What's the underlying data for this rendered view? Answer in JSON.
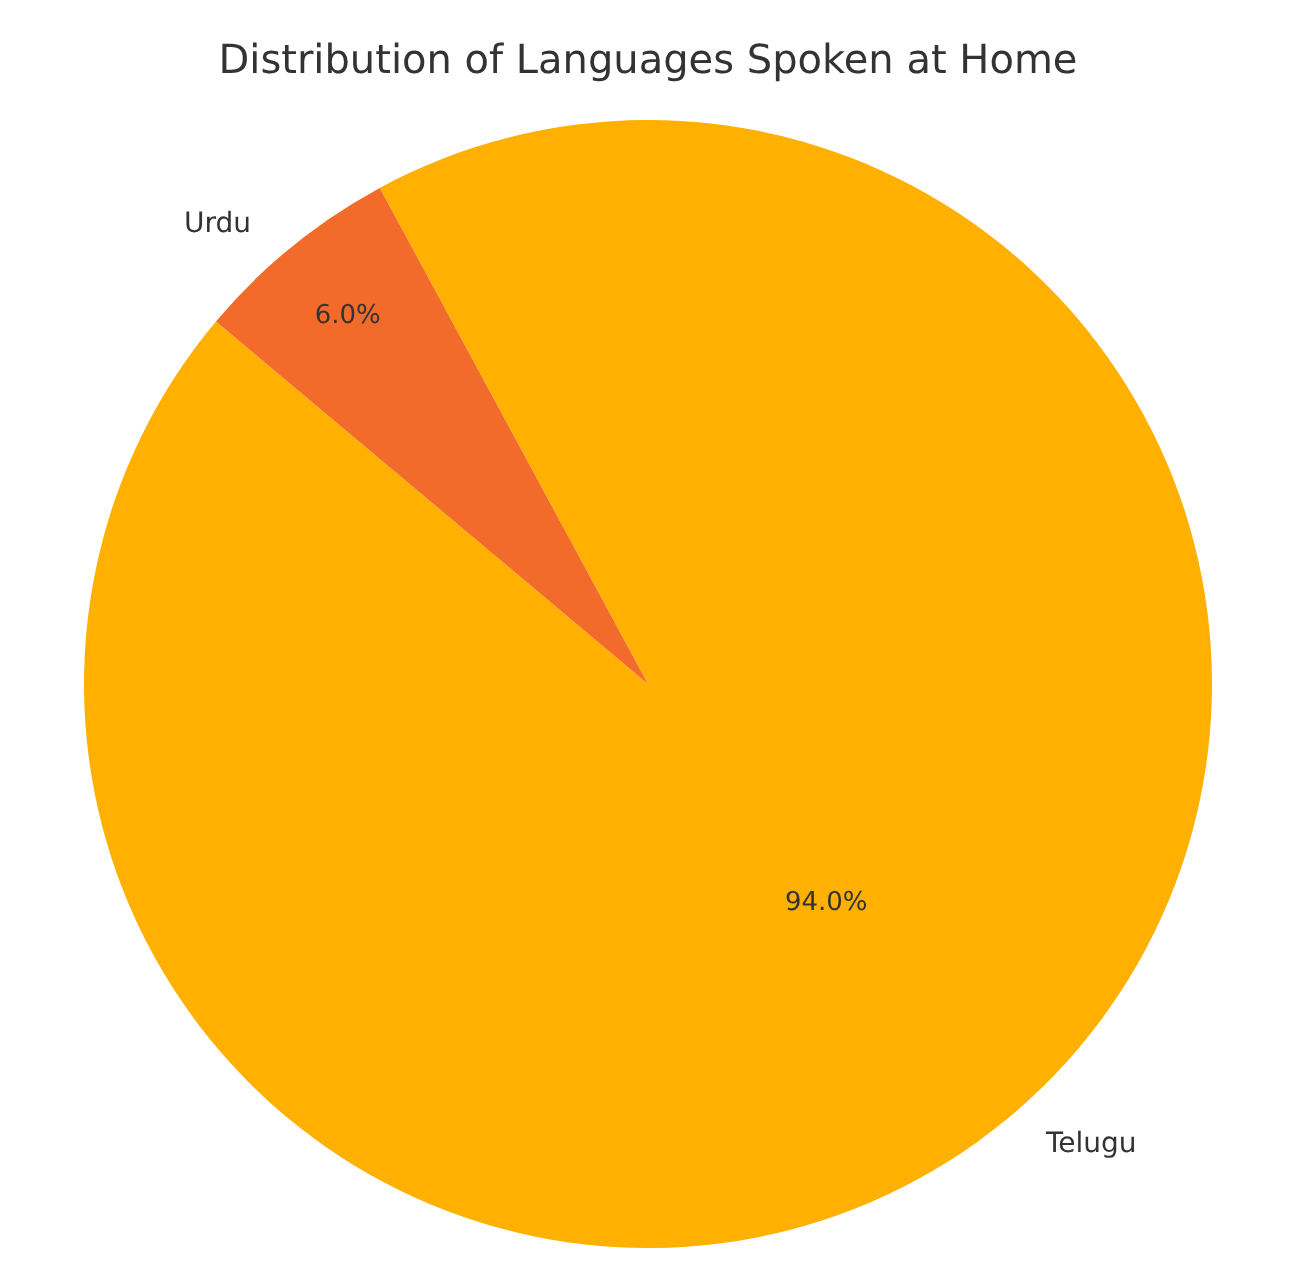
{
  "chart_data": {
    "type": "pie",
    "title": "Distribution of Languages Spoken at Home",
    "categories": [
      "Telugu",
      "Urdu"
    ],
    "values": [
      94.0,
      6.0
    ],
    "colors": [
      "#ffb000",
      "#f26b2a"
    ],
    "value_labels": [
      "94.0%",
      "6.0%"
    ],
    "legend": false
  }
}
